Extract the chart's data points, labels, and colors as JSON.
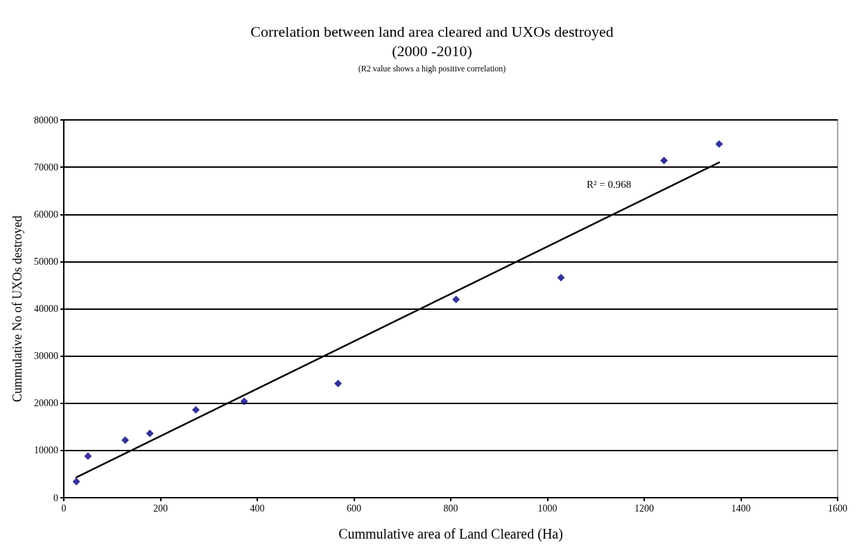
{
  "chart_data": {
    "type": "scatter",
    "title": "Correlation between land area cleared and UXOs destroyed\n(2000 -2010)",
    "subtitle": "(R2 value shows a high positive correlation)",
    "xlabel": "Cummulative area of Land Cleared (Ha)",
    "ylabel": "Cummulative No of UXOs destroyed",
    "xlim": [
      0,
      1600
    ],
    "xticks": [
      0,
      200,
      400,
      600,
      800,
      1000,
      1200,
      1400,
      1600
    ],
    "ylim": [
      0,
      80000
    ],
    "yticks": [
      0,
      10000,
      20000,
      30000,
      40000,
      50000,
      60000,
      70000,
      80000
    ],
    "grid": "y",
    "marker": "diamond",
    "series": [
      {
        "color": "#000080",
        "x": [
          26,
          50,
          127,
          178,
          273,
          373,
          567,
          811,
          1028,
          1241,
          1355
        ],
        "values": [
          3400,
          8800,
          12200,
          13600,
          18600,
          20400,
          24200,
          42000,
          46600,
          71400,
          74900
        ]
      },
      {
        "type": "line",
        "color": "#000000",
        "marker": "none",
        "line_style": "solid",
        "x": [
          26,
          1355
        ],
        "values": [
          4300,
          71000
        ]
      }
    ],
    "annotations": [
      "R² = 0.968"
    ]
  }
}
